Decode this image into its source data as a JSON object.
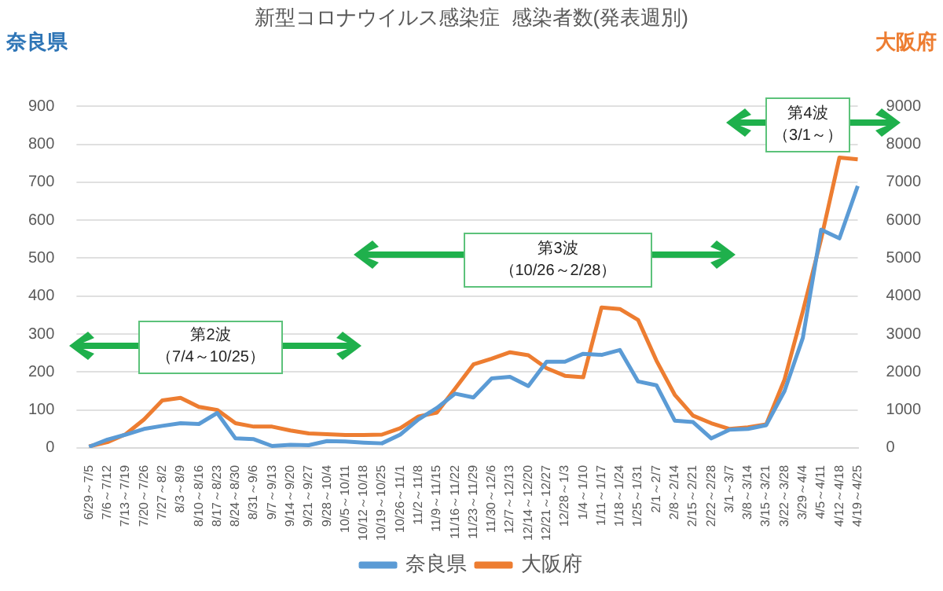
{
  "chart_data": {
    "type": "line",
    "title": "新型コロナウイルス感染症  感染者数(発表週別)",
    "ylabel": "奈良県",
    "y2label": "大阪府",
    "categories": [
      "6/29～7/5",
      "7/6～7/12",
      "7/13～7/19",
      "7/20～7/26",
      "7/27～8/2",
      "8/3～8/9",
      "8/10～8/16",
      "8/17～8/23",
      "8/24～8/30",
      "8/31～9/6",
      "9/7～9/13",
      "9/14～9/20",
      "9/21～9/27",
      "9/28～10/4",
      "10/5～10/11",
      "10/12～10/18",
      "10/19～10/25",
      "10/26～11/1",
      "11/2～11/8",
      "11/9～11/15",
      "11/16～11/22",
      "11/23～11/29",
      "11/30～12/6",
      "12/7～12/13",
      "12/14～12/20",
      "12/21～12/27",
      "12/28～1/3",
      "1/4～1/10",
      "1/11～1/17",
      "1/18～1/24",
      "1/25～1/31",
      "2/1～2/7",
      "2/8～2/14",
      "2/15～2/21",
      "2/22～2/28",
      "3/1～3/7",
      "3/8～3/14",
      "3/15～3/21",
      "3/22～3/28",
      "3/29～4/4",
      "4/5～4/11",
      "4/12～4/18",
      "4/19～4/25"
    ],
    "series": [
      {
        "name": "奈良県",
        "color": "#5b9bd5",
        "values": [
          3,
          22,
          35,
          50,
          58,
          65,
          63,
          92,
          25,
          23,
          5,
          8,
          7,
          18,
          17,
          14,
          12,
          35,
          75,
          105,
          143,
          133,
          183,
          187,
          163,
          227,
          227,
          248,
          245,
          258,
          175,
          165,
          72,
          68,
          25,
          48,
          50,
          60,
          150,
          290,
          575,
          552,
          690
        ]
      },
      {
        "name": "大阪府",
        "color": "#ed7d31",
        "axis": "y2",
        "values": [
          40,
          150,
          360,
          750,
          1250,
          1320,
          1080,
          1000,
          650,
          560,
          560,
          460,
          380,
          360,
          340,
          340,
          350,
          520,
          830,
          930,
          1560,
          2200,
          2350,
          2520,
          2440,
          2100,
          1900,
          1860,
          3700,
          3660,
          3370,
          2300,
          1400,
          850,
          650,
          500,
          540,
          620,
          1800,
          3600,
          5500,
          7650,
          7600
        ]
      }
    ],
    "ylim": [
      0,
      900
    ],
    "yticks": [
      0,
      100,
      200,
      300,
      400,
      500,
      600,
      700,
      800,
      900
    ],
    "y2lim": [
      0,
      9000
    ],
    "y2ticks": [
      0,
      1000,
      2000,
      3000,
      4000,
      5000,
      6000,
      7000,
      8000,
      9000
    ],
    "grid": "y",
    "legend": "bottom",
    "marker": "none",
    "line_style": "solid",
    "annotations": [
      "第2波",
      "（7/4～10/25）",
      "第3波",
      "（10/26～2/28）",
      "第4波",
      "（3/1～）"
    ]
  }
}
